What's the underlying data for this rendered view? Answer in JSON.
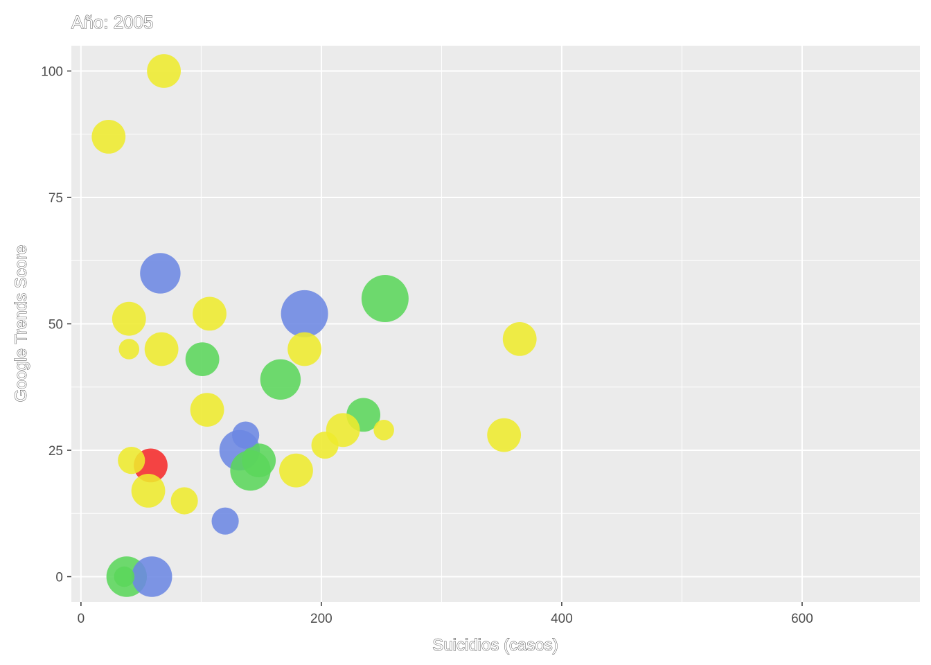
{
  "chart_data": {
    "type": "scatter",
    "title": "Año: 2005",
    "xlabel": "Suicidios (casos)",
    "ylabel": "Google Trends Score",
    "xlim": [
      -8,
      698
    ],
    "ylim": [
      -5,
      105
    ],
    "xticks": [
      0,
      200,
      400,
      600
    ],
    "yticks": [
      0,
      25,
      50,
      75,
      100
    ],
    "xtick_labels": [
      "0",
      "200",
      "400",
      "600"
    ],
    "ytick_labels": [
      "0",
      "25",
      "50",
      "75",
      "100"
    ],
    "grid": true,
    "legend": "none",
    "colors": {
      "yellow": "#EEEA2E",
      "blue": "#6C88E3",
      "green": "#5BD65B",
      "red": "#F52B2B",
      "panel": "#EBEBEB",
      "grid": "#FFFFFF"
    },
    "points": [
      {
        "x": 69,
        "y": 100,
        "size": 3,
        "color": "yellow"
      },
      {
        "x": 23,
        "y": 87,
        "size": 3,
        "color": "yellow"
      },
      {
        "x": 66,
        "y": 60,
        "size": 4,
        "color": "blue"
      },
      {
        "x": 40,
        "y": 51,
        "size": 3,
        "color": "yellow"
      },
      {
        "x": 107,
        "y": 52,
        "size": 3,
        "color": "yellow"
      },
      {
        "x": 186,
        "y": 52,
        "size": 5,
        "color": "blue"
      },
      {
        "x": 253,
        "y": 55,
        "size": 5,
        "color": "green"
      },
      {
        "x": 365,
        "y": 47,
        "size": 3,
        "color": "yellow"
      },
      {
        "x": 40,
        "y": 45,
        "size": 1,
        "color": "yellow"
      },
      {
        "x": 67,
        "y": 45,
        "size": 3,
        "color": "yellow"
      },
      {
        "x": 186,
        "y": 45,
        "size": 3,
        "color": "yellow"
      },
      {
        "x": 101,
        "y": 43,
        "size": 3,
        "color": "green"
      },
      {
        "x": 166,
        "y": 39,
        "size": 4,
        "color": "green"
      },
      {
        "x": 105,
        "y": 33,
        "size": 3,
        "color": "yellow"
      },
      {
        "x": 235,
        "y": 32,
        "size": 3,
        "color": "green"
      },
      {
        "x": 218,
        "y": 29,
        "size": 3,
        "color": "yellow"
      },
      {
        "x": 252,
        "y": 29,
        "size": 1,
        "color": "yellow"
      },
      {
        "x": 352,
        "y": 28,
        "size": 3,
        "color": "yellow"
      },
      {
        "x": 137,
        "y": 28,
        "size": 2,
        "color": "blue"
      },
      {
        "x": 203,
        "y": 26,
        "size": 2,
        "color": "yellow"
      },
      {
        "x": 132,
        "y": 25,
        "size": 4,
        "color": "blue"
      },
      {
        "x": 148,
        "y": 23,
        "size": 3,
        "color": "green"
      },
      {
        "x": 141,
        "y": 21,
        "size": 4,
        "color": "green"
      },
      {
        "x": 179,
        "y": 21,
        "size": 3,
        "color": "yellow"
      },
      {
        "x": 42,
        "y": 23,
        "size": 2,
        "color": "yellow"
      },
      {
        "x": 58,
        "y": 22,
        "size": 3,
        "color": "red"
      },
      {
        "x": 56,
        "y": 17,
        "size": 3,
        "color": "yellow"
      },
      {
        "x": 86,
        "y": 15,
        "size": 2,
        "color": "yellow"
      },
      {
        "x": 120,
        "y": 11,
        "size": 2,
        "color": "blue"
      },
      {
        "x": 38,
        "y": 0,
        "size": 4,
        "color": "green"
      },
      {
        "x": 59,
        "y": 0,
        "size": 4,
        "color": "blue"
      },
      {
        "x": 36,
        "y": 0,
        "size": 1,
        "color": "green"
      }
    ]
  }
}
